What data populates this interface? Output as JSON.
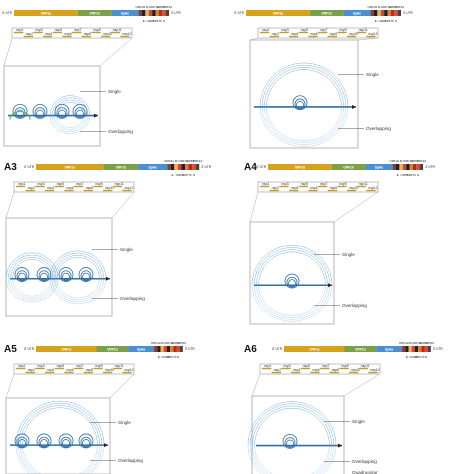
{
  "genome": {
    "utr5": "5' UTR",
    "utr3": "3' UTR",
    "segments": [
      {
        "label": "ORF1a",
        "color": "#d6a21e"
      },
      {
        "label": "ORF1b",
        "color": "#7ba04a"
      },
      {
        "label": "Spike",
        "color": "#4a8fd0"
      }
    ],
    "small_orfs": [
      "ORF3a",
      "E",
      "M",
      "ORF6",
      "ORF7a",
      "ORF7b",
      "ORF8",
      "N",
      "ORF10"
    ],
    "small_colors": [
      "#8e3c2f",
      "#222222",
      "#f5b04a",
      "#c74848",
      "#222222",
      "#e07d2a",
      "#b12a2a",
      "#e64a2e",
      "#444444"
    ]
  },
  "nsps": [
    "nsp1",
    "nsp2",
    "nsp3",
    "nsp4",
    "nsp5",
    "nsp6",
    "nsp7",
    "nsp8",
    "nsp9",
    "nsp10",
    "nsp11",
    "nsp12"
  ],
  "labels": {
    "single": "Single",
    "overlapping": "Overlapping",
    "quadrupolar": "Quadrupolar"
  },
  "panels": [
    {
      "id": "A1",
      "label": ""
    },
    {
      "id": "A2",
      "label": ""
    },
    {
      "id": "A3",
      "label": "A3"
    },
    {
      "id": "A4",
      "label": "A4"
    },
    {
      "id": "A5",
      "label": "A5"
    },
    {
      "id": "A6",
      "label": "A6"
    }
  ],
  "colors": {
    "arc": "#5b9bd5",
    "arc_dark": "#2f6ea8",
    "overlap_green": "#4caf50",
    "nsp_bar": "#c99a25"
  }
}
